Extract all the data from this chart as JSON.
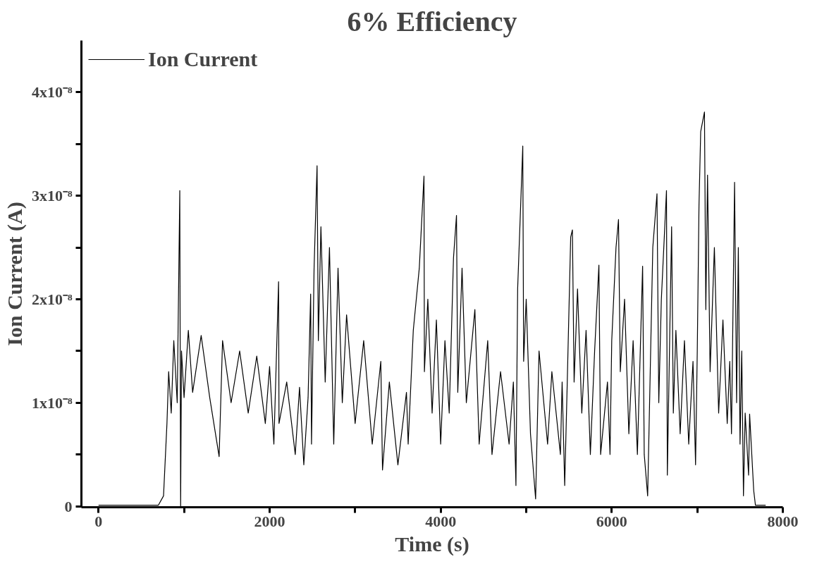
{
  "chart_data": {
    "type": "line",
    "title": "6% Efficiency",
    "xlabel": "Time (s)",
    "ylabel": "Ion Current (A)",
    "xlim": [
      -200,
      8000
    ],
    "ylim": [
      -1e-10,
      4.5e-08
    ],
    "xticks": [
      0,
      {
        "value": 1000,
        "label": null
      },
      2000,
      {
        "value": 3000,
        "label": null
      },
      4000,
      {
        "value": 5000,
        "label": null
      },
      6000,
      {
        "value": 7000,
        "label": null
      },
      8000
    ],
    "yticks": [
      0,
      {
        "value": 5e-09,
        "label": null
      },
      {
        "value": 1e-08,
        "label": "1x10⁻⁸"
      },
      {
        "value": 1.5e-08,
        "label": null
      },
      {
        "value": 2e-08,
        "label": "2x10⁻⁸"
      },
      {
        "value": 2.5e-08,
        "label": null
      },
      {
        "value": 3e-08,
        "label": "3x10⁻⁸"
      },
      {
        "value": 3.5e-08,
        "label": null
      },
      {
        "value": 4e-08,
        "label": "4x10⁻⁸"
      }
    ],
    "grid": false,
    "legend": "top left",
    "marker": "none",
    "line_style": "solid",
    "series": [
      {
        "name": "Ion Current",
        "color": "#000000",
        "x": [
          0,
          700,
          760,
          800,
          820,
          850,
          880,
          920,
          950,
          955,
          960,
          970,
          1000,
          1050,
          1100,
          1200,
          1300,
          1410,
          1450,
          1550,
          1650,
          1750,
          1850,
          1950,
          2000,
          2050,
          2105,
          2110,
          2200,
          2300,
          2350,
          2400,
          2450,
          2480,
          2490,
          2520,
          2555,
          2570,
          2600,
          2650,
          2700,
          2750,
          2800,
          2850,
          2900,
          3000,
          3100,
          3200,
          3300,
          3320,
          3400,
          3500,
          3600,
          3620,
          3680,
          3750,
          3805,
          3810,
          3850,
          3900,
          3950,
          4000,
          4050,
          4100,
          4150,
          4185,
          4200,
          4250,
          4300,
          4400,
          4450,
          4550,
          4600,
          4700,
          4800,
          4850,
          4880,
          4900,
          4960,
          4970,
          5000,
          5050,
          5110,
          5150,
          5250,
          5300,
          5400,
          5420,
          5450,
          5480,
          5520,
          5540,
          5560,
          5600,
          5650,
          5700,
          5750,
          5800,
          5850,
          5870,
          5950,
          5980,
          6000,
          6050,
          6079,
          6100,
          6150,
          6200,
          6250,
          6300,
          6361,
          6380,
          6420,
          6450,
          6480,
          6529,
          6550,
          6580,
          6640,
          6650,
          6700,
          6720,
          6750,
          6800,
          6850,
          6900,
          6950,
          6980,
          7000,
          7020,
          7040,
          7084,
          7100,
          7120,
          7150,
          7200,
          7250,
          7300,
          7350,
          7380,
          7400,
          7436,
          7460,
          7480,
          7500,
          7520,
          7540,
          7560,
          7600,
          7612,
          7660,
          7680,
          7800
        ],
        "values": [
          1e-10,
          1e-10,
          1e-09,
          8e-09,
          1.3e-08,
          9e-09,
          1.6e-08,
          1e-08,
          3.05e-08,
          1.4e-08,
          0,
          1.5e-08,
          1.05e-08,
          1.7e-08,
          1.1e-08,
          1.65e-08,
          1.05e-08,
          4.8e-09,
          1.6e-08,
          1e-08,
          1.5e-08,
          9e-09,
          1.45e-08,
          8e-09,
          1.35e-08,
          6e-09,
          2.17e-08,
          8e-09,
          1.2e-08,
          5e-09,
          1.15e-08,
          4e-09,
          1.05e-08,
          2.05e-08,
          6e-09,
          2.3e-08,
          3.29e-08,
          1.6e-08,
          2.7e-08,
          1.2e-08,
          2.5e-08,
          6e-09,
          2.3e-08,
          1e-08,
          1.85e-08,
          8e-09,
          1.6e-08,
          6e-09,
          1.4e-08,
          3.5e-09,
          1.2e-08,
          4e-09,
          1.1e-08,
          6e-09,
          1.7e-08,
          2.3e-08,
          3.19e-08,
          1.3e-08,
          2e-08,
          9e-09,
          1.8e-08,
          6e-09,
          1.6e-08,
          9e-09,
          2.4e-08,
          2.81e-08,
          1.1e-08,
          2.3e-08,
          1e-08,
          1.9e-08,
          6e-09,
          1.6e-08,
          5e-09,
          1.3e-08,
          6e-09,
          1.2e-08,
          2e-09,
          2.1e-08,
          3.48e-08,
          1.4e-08,
          2e-08,
          7e-09,
          7e-10,
          1.5e-08,
          6e-09,
          1.3e-08,
          5e-09,
          1.2e-08,
          2e-09,
          1.2e-08,
          2.6e-08,
          2.67e-08,
          1.2e-08,
          2.1e-08,
          9e-09,
          1.7e-08,
          5e-09,
          1.5e-08,
          2.33e-08,
          5e-09,
          1.2e-08,
          5e-09,
          1.6e-08,
          2.5e-08,
          2.77e-08,
          1.3e-08,
          2e-08,
          7e-09,
          1.6e-08,
          5e-09,
          2.32e-08,
          5e-09,
          1e-09,
          1.3e-08,
          2.5e-08,
          3.02e-08,
          1e-08,
          2e-08,
          3.05e-08,
          3e-09,
          2.7e-08,
          9e-09,
          1.7e-08,
          7e-09,
          1.6e-08,
          6e-09,
          1.4e-08,
          4e-09,
          1.5e-08,
          2.9e-08,
          3.62e-08,
          3.81e-08,
          1.9e-08,
          3.2e-08,
          1.3e-08,
          2.5e-08,
          9e-09,
          1.8e-08,
          8e-09,
          1.4e-08,
          7e-09,
          3.13e-08,
          1e-08,
          2.5e-08,
          6e-09,
          1.5e-08,
          1e-09,
          9e-09,
          3e-09,
          8.9e-09,
          1.5e-09,
          1e-10,
          1e-10
        ]
      }
    ]
  }
}
